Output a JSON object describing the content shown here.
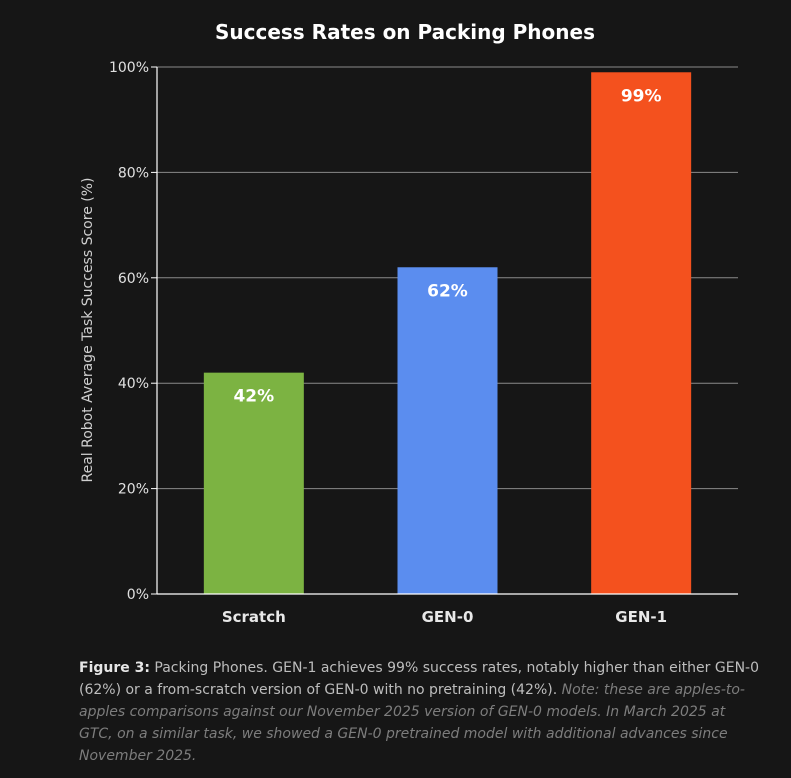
{
  "chart_data": {
    "type": "bar",
    "title": "Success Rates on Packing Phones",
    "ylabel": "Real Robot Average Task Success Score (%)",
    "xlabel": "",
    "ylim": [
      0,
      100
    ],
    "yticks": [
      "0%",
      "20%",
      "40%",
      "60%",
      "80%",
      "100%"
    ],
    "ytick_values": [
      0,
      20,
      40,
      60,
      80,
      100
    ],
    "grid": true,
    "categories": [
      "Scratch",
      "GEN-0",
      "GEN-1"
    ],
    "values": [
      42,
      62,
      99
    ],
    "data_labels": [
      "42%",
      "62%",
      "99%"
    ],
    "colors": [
      "#7cb342",
      "#5b8def",
      "#f4511e"
    ]
  },
  "caption": {
    "figure_label": "Figure 3:",
    "text": " Packing Phones. GEN-1 achieves 99% success rates, notably higher than either GEN-0 (62%) or a from-scratch version of GEN-0 with no pretraining (42%). ",
    "note": "Note: these are apples-to-apples comparisons against our November 2025 version of GEN-0 models. In March 2025 at GTC, on a similar task, we showed a GEN-0 pretrained model with additional advances since November 2025."
  }
}
